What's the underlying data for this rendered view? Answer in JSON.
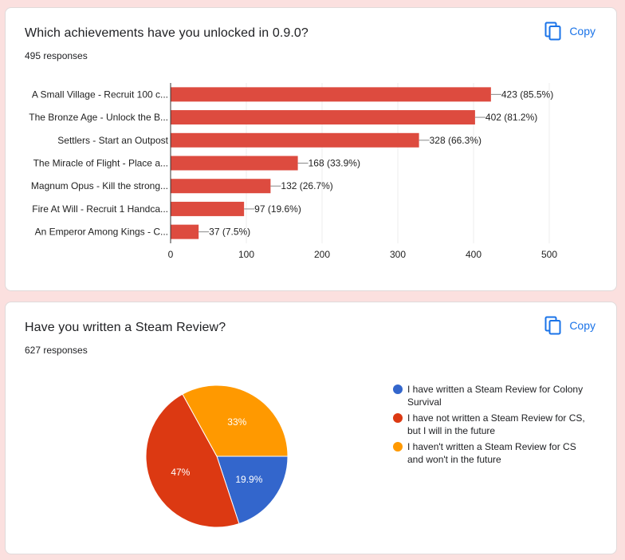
{
  "cards": [
    {
      "title": "Which achievements have you unlocked in 0.9.0?",
      "responses": "495 responses",
      "copy_label": "Copy"
    },
    {
      "title": "Have you written a Steam Review?",
      "responses": "627 responses",
      "copy_label": "Copy"
    }
  ],
  "chart_data": [
    {
      "type": "bar",
      "orientation": "horizontal",
      "categories": [
        "A Small Village - Recruit 100 c...",
        "The Bronze Age - Unlock the B...",
        "Settlers - Start an Outpost",
        "The Miracle of Flight - Place a...",
        "Magnum Opus - Kill the strong...",
        "Fire At Will - Recruit 1 Handca...",
        "An Emperor Among Kings - C..."
      ],
      "values": [
        423,
        402,
        328,
        168,
        132,
        97,
        37
      ],
      "data_labels": [
        "423 (85.5%)",
        "402 (81.2%)",
        "328 (66.3%)",
        "168 (33.9%)",
        "132 (26.7%)",
        "97 (19.6%)",
        "37 (7.5%)"
      ],
      "xlim": [
        0,
        500
      ],
      "xticks": [
        "0",
        "100",
        "200",
        "300",
        "400",
        "500"
      ],
      "grid": true,
      "bar_color": "#dd4b3f"
    },
    {
      "type": "pie",
      "categories": [
        "I have written a Steam Review for Colony Survival",
        "I have not written a Steam Review for CS, but I will in the future",
        "I haven't written a Steam Review for CS and won't in the future"
      ],
      "values": [
        19.9,
        47,
        33
      ],
      "slice_labels": [
        "19.9%",
        "47%",
        "33%"
      ],
      "colors": [
        "#3366cc",
        "#dc3912",
        "#ff9900"
      ],
      "legend": "right"
    }
  ]
}
